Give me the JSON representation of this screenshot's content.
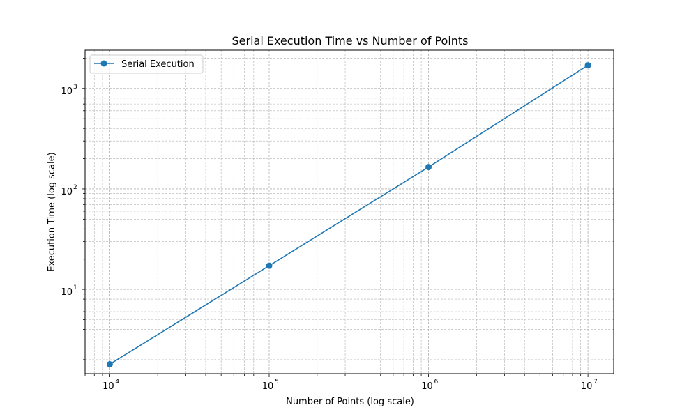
{
  "chart_data": {
    "type": "line",
    "title": "Serial Execution Time vs Number of Points",
    "xlabel": "Number of Points (log scale)",
    "ylabel": "Execution Time (log scale)",
    "xscale": "log",
    "yscale": "log",
    "xlim": [
      7000,
      14500000
    ],
    "ylim": [
      1.45,
      2400
    ],
    "grid": true,
    "legend_position": "upper-left",
    "xticks": [
      {
        "base": "10",
        "exp": "4",
        "value": 10000
      },
      {
        "base": "10",
        "exp": "5",
        "value": 100000
      },
      {
        "base": "10",
        "exp": "6",
        "value": 1000000
      },
      {
        "base": "10",
        "exp": "7",
        "value": 10000000
      }
    ],
    "yticks": [
      {
        "base": "10",
        "exp": "1",
        "value": 10
      },
      {
        "base": "10",
        "exp": "2",
        "value": 100
      },
      {
        "base": "10",
        "exp": "3",
        "value": 1000
      }
    ],
    "series": [
      {
        "name": "Serial Execution",
        "color": "#1f77b4",
        "marker": "circle",
        "x": [
          10000,
          100000,
          1000000,
          10000000
        ],
        "y": [
          1.8,
          17.2,
          165,
          1700
        ]
      }
    ]
  }
}
